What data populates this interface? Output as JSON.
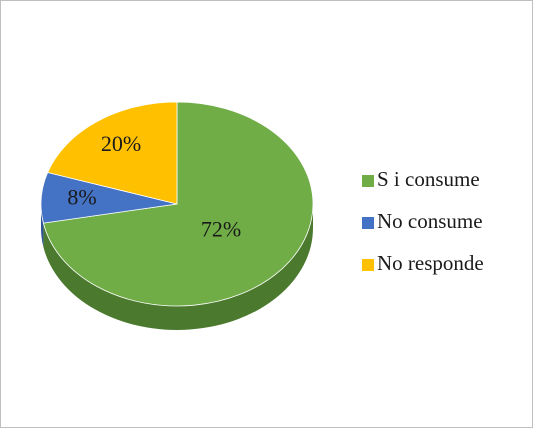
{
  "chart_data": {
    "type": "pie",
    "title": "",
    "categories": [
      "S i consume",
      "No consume",
      "No responde"
    ],
    "values": [
      72,
      8,
      20
    ],
    "labels": [
      "72%",
      "8%",
      "20%"
    ],
    "colors": [
      "#70ad47",
      "#4472c4",
      "#ffc000"
    ],
    "side_colors": [
      "#4b7a2e",
      "#2f5597",
      "#bf9000"
    ],
    "legend_position": "right",
    "style": "3d"
  }
}
